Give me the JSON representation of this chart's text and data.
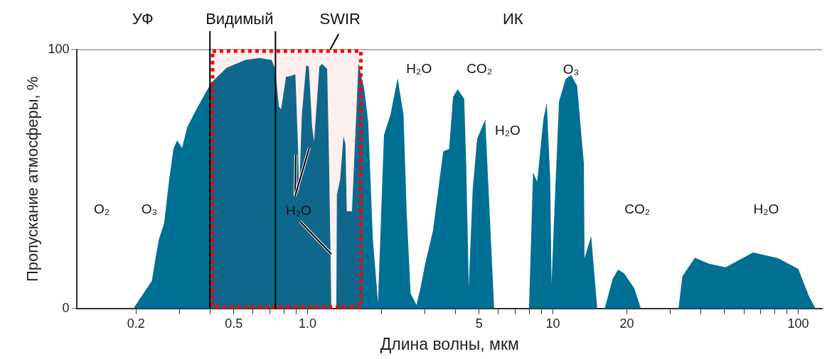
{
  "chart_data": {
    "type": "area",
    "xlabel": "Длина волны, мкм",
    "ylabel": "Пропускание атмосферы, %",
    "log": "x",
    "xlim": [
      0.115,
      125
    ],
    "ylim": [
      0,
      100
    ],
    "yticks": [
      0,
      100
    ],
    "xticks": [
      0.2,
      {
        "value": 0.3,
        "label": null
      },
      {
        "value": 0.4,
        "label": null
      },
      0.5,
      {
        "value": 0.6,
        "label": null
      },
      {
        "value": 0.7,
        "label": null
      },
      {
        "value": 0.8,
        "label": null
      },
      {
        "value": 0.9,
        "label": null
      },
      {
        "value": 1,
        "label": "1.0"
      },
      {
        "value": 2,
        "label": null
      },
      {
        "value": 3,
        "label": null
      },
      {
        "value": 4,
        "label": null
      },
      5,
      {
        "value": 6,
        "label": null
      },
      {
        "value": 7,
        "label": null
      },
      {
        "value": 8,
        "label": null
      },
      {
        "value": 9,
        "label": null
      },
      10,
      20,
      {
        "value": 30,
        "label": null
      },
      {
        "value": 40,
        "label": null
      },
      {
        "value": 50,
        "label": null
      },
      {
        "value": 60,
        "label": null
      },
      {
        "value": 70,
        "label": null
      },
      {
        "value": 80,
        "label": null
      },
      {
        "value": 90,
        "label": null
      },
      100
    ],
    "series": [
      {
        "color": "#006f94",
        "x": [
          0.195,
          0.232,
          0.24,
          0.248,
          0.26,
          0.273,
          0.284,
          0.294,
          0.308,
          0.323,
          0.348,
          0.382,
          0.408,
          0.468,
          0.557,
          0.637,
          0.714,
          0.738,
          0.764,
          0.78,
          0.817,
          0.834,
          0.892,
          0.916,
          0.923,
          0.948,
          0.987,
          1.012,
          1.044,
          1.063,
          1.117,
          1.144,
          1.202,
          1.224,
          1.25,
          1.31,
          1.317,
          1.358,
          1.4,
          1.427,
          1.445,
          1.517,
          1.563,
          1.612,
          1.703,
          1.767,
          1.845,
          1.937,
          2.048,
          2.178,
          2.328,
          2.46,
          2.536,
          2.631,
          2.78,
          2.884,
          3.012,
          3.243,
          3.573,
          3.776,
          3.918,
          4.09,
          4.35,
          4.43,
          4.54,
          4.71,
          4.91,
          5.3,
          5.76,
          7.99,
          8.3,
          8.63,
          9.14,
          9.44,
          9.75,
          9.87,
          10.13,
          10.59,
          11.27,
          11.86,
          12.55,
          13.37,
          13.45,
          14.32,
          15.16,
          16.26,
          17.54,
          18.45,
          19.5,
          21.45,
          22.83,
          32.5,
          33.7,
          37.9,
          43.3,
          50.6,
          65.5,
          82.8,
          100,
          110.4,
          117.5
        ],
        "values": [
          0,
          10.7,
          19.4,
          26.9,
          32.7,
          50,
          61.6,
          65,
          62,
          70,
          76,
          83,
          87.5,
          93,
          96,
          96.8,
          96,
          92.5,
          78,
          77,
          89.6,
          89.6,
          90.5,
          60,
          44,
          75,
          94,
          93.4,
          70,
          64.5,
          93.4,
          94.5,
          92.5,
          56,
          0,
          0,
          44,
          50,
          66.5,
          63.6,
          37.6,
          37.6,
          65.6,
          94.8,
          84.7,
          72,
          27,
          2.3,
          67,
          75,
          89,
          75,
          36.7,
          5.8,
          1.4,
          7.8,
          17,
          30,
          60.7,
          61.6,
          81.8,
          84.7,
          81,
          56,
          8.7,
          46,
          65.6,
          73,
          0,
          0,
          52.6,
          49,
          73,
          79.5,
          50,
          9.5,
          36.7,
          80,
          88.7,
          90.2,
          86,
          56,
          19.4,
          28,
          0,
          0,
          11.6,
          15,
          13.6,
          7.8,
          0,
          0,
          12.4,
          19.6,
          17.3,
          15.9,
          21.7,
          19.4,
          15.3,
          4.9,
          0
        ]
      }
    ],
    "ref_lines": [
      {
        "axis": "x",
        "value": 0.4,
        "color": "#000000"
      },
      {
        "axis": "x",
        "value": 0.74,
        "color": "#000000"
      }
    ],
    "bands": [
      {
        "axis": "x",
        "from": 0.41,
        "to": 1.65,
        "color": "#ff0000"
      }
    ],
    "annotations": [
      "УФ",
      "Видимый",
      "SWIR",
      "ИК",
      "O₂",
      "O₃",
      {
        "text": "H₂O",
        "x": 1.25,
        "y": 21
      },
      "H₂O",
      "CO₂",
      "H₂O",
      "O₃",
      "CO₂",
      "H₂O"
    ]
  }
}
